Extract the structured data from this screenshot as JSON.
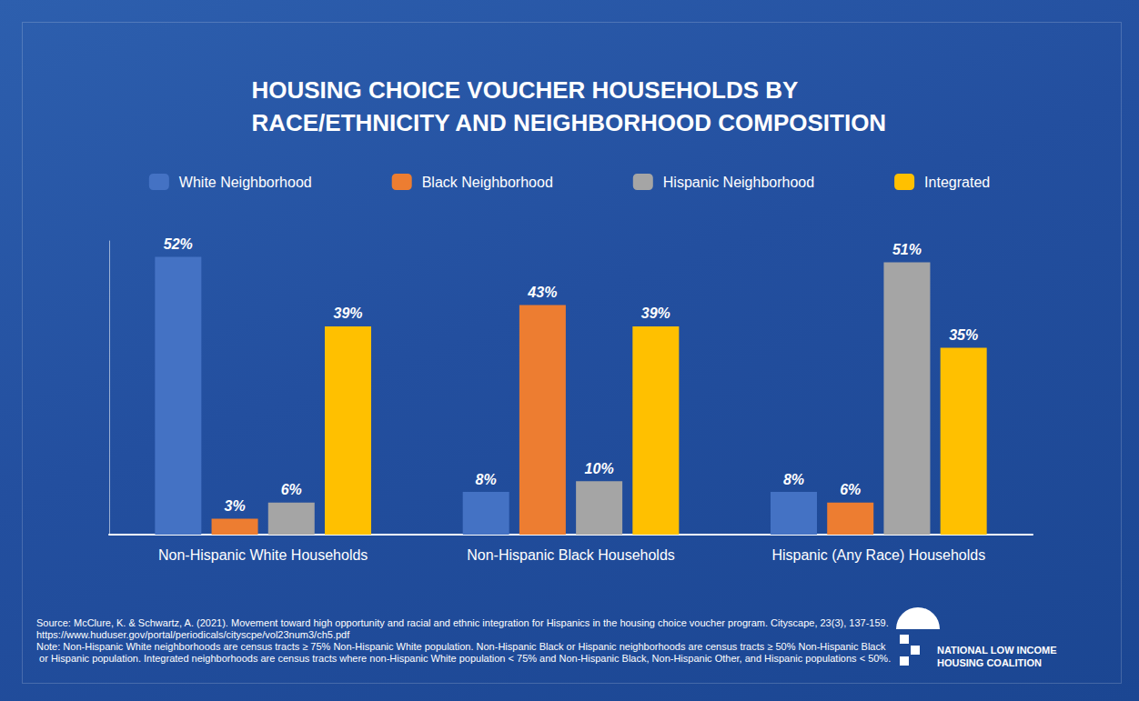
{
  "chart_data": {
    "type": "bar",
    "title": "HOUSING CHOICE VOUCHER HOUSEHOLDS BY\nRACE/ETHNICITY AND NEIGHBORHOOD COMPOSITION",
    "categories": [
      "Non-Hispanic White Households",
      "Non-Hispanic Black Households",
      "Hispanic (Any Race) Households"
    ],
    "series": [
      {
        "name": "White Neighborhood",
        "color": "#4472c4",
        "values": [
          52,
          8,
          8
        ],
        "value_labels": [
          "52%",
          "8%",
          "8%"
        ]
      },
      {
        "name": "Black Neighborhood",
        "color": "#ed7d31",
        "values": [
          3,
          43,
          6
        ],
        "value_labels": [
          "3%",
          "43%",
          "6%"
        ]
      },
      {
        "name": "Hispanic Neighborhood",
        "color": "#a5a5a5",
        "values": [
          6,
          10,
          51
        ],
        "value_labels": [
          "6%",
          "10%",
          "51%"
        ]
      },
      {
        "name": "Integrated",
        "color": "#ffc000",
        "values": [
          39,
          39,
          35
        ],
        "value_labels": [
          "39%",
          "39%",
          "35%"
        ]
      }
    ],
    "ylim": [
      0,
      55
    ],
    "grid": false,
    "legend": "top",
    "data_labels": true,
    "tick_labels": "x",
    "annotations": [
      "Source: McClure, K. & Schwartz, A. (2021). Movement toward high opportunity and racial and ethnic integration for Hispanics in the housing choice voucher program. Cityscape, 23(3), 137-159. https://www.huduser.gov/portal/periodicals/cityscpe/vol23num3/ch5.pdf",
      "Note: Non-Hispanic White neighborhoods are census tracts ≥ 75% Non-Hispanic White population. Non-Hispanic Black or Hispanic neighborhoods are census tracts ≥ 50% Non-Hispanic Black or Hispanic population. Integrated neighborhoods are census tracts where non-Hispanic White population < 75% and Non-Hispanic Black, Non-Hispanic Other, and Hispanic populations < 50%.",
      "NATIONAL LOW INCOME\nHOUSING COALITION"
    ]
  }
}
